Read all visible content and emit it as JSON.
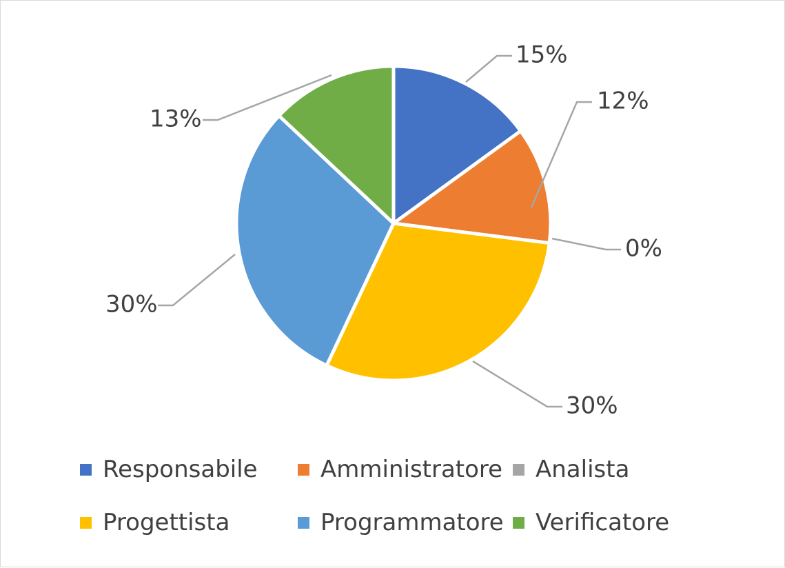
{
  "chart_data": {
    "type": "pie",
    "title": "",
    "categories": [
      "Responsabile",
      "Amministratore",
      "Analista",
      "Progettista",
      "Programmatore",
      "Verificatore"
    ],
    "values": [
      15,
      12,
      0,
      30,
      30,
      13
    ],
    "labels": [
      "15%",
      "12%",
      "0%",
      "30%",
      "30%",
      "13%"
    ],
    "colors": [
      "#4472C4",
      "#ED7D31",
      "#A5A5A5",
      "#FFC000",
      "#5B9BD5",
      "#70AD47"
    ],
    "leader_line_color": "#A6A6A6",
    "legend_position": "bottom"
  }
}
